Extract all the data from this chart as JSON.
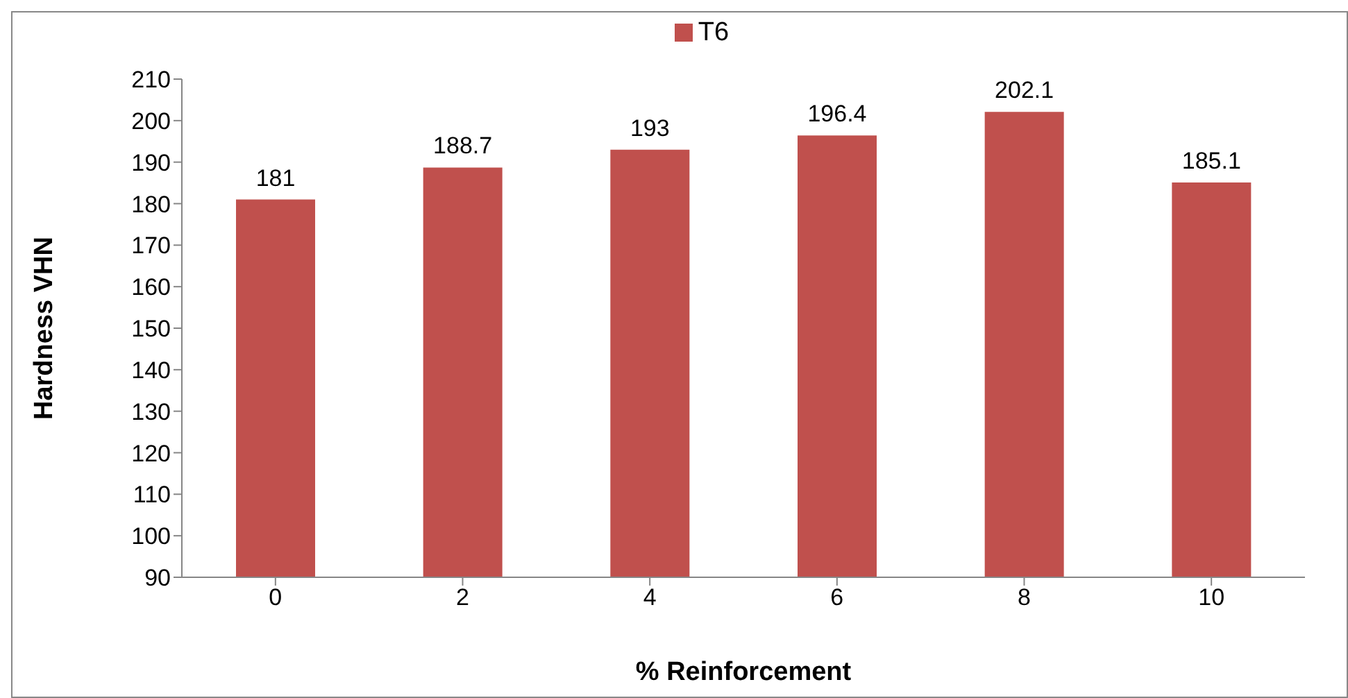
{
  "chart_data": {
    "type": "bar",
    "xlabel": "% Reinforcement",
    "ylabel": "Hardness VHN",
    "categories": [
      "0",
      "2",
      "4",
      "6",
      "8",
      "10"
    ],
    "series": [
      {
        "name": "T6",
        "color": "#c0504d",
        "values": [
          181,
          188.7,
          193,
          196.4,
          202.1,
          185.1
        ]
      }
    ],
    "ylim": [
      90,
      210
    ],
    "yticks": [
      90,
      100,
      110,
      120,
      130,
      140,
      150,
      160,
      170,
      180,
      190,
      200,
      210
    ],
    "data_labels": true,
    "legend": "top",
    "grid": false
  }
}
